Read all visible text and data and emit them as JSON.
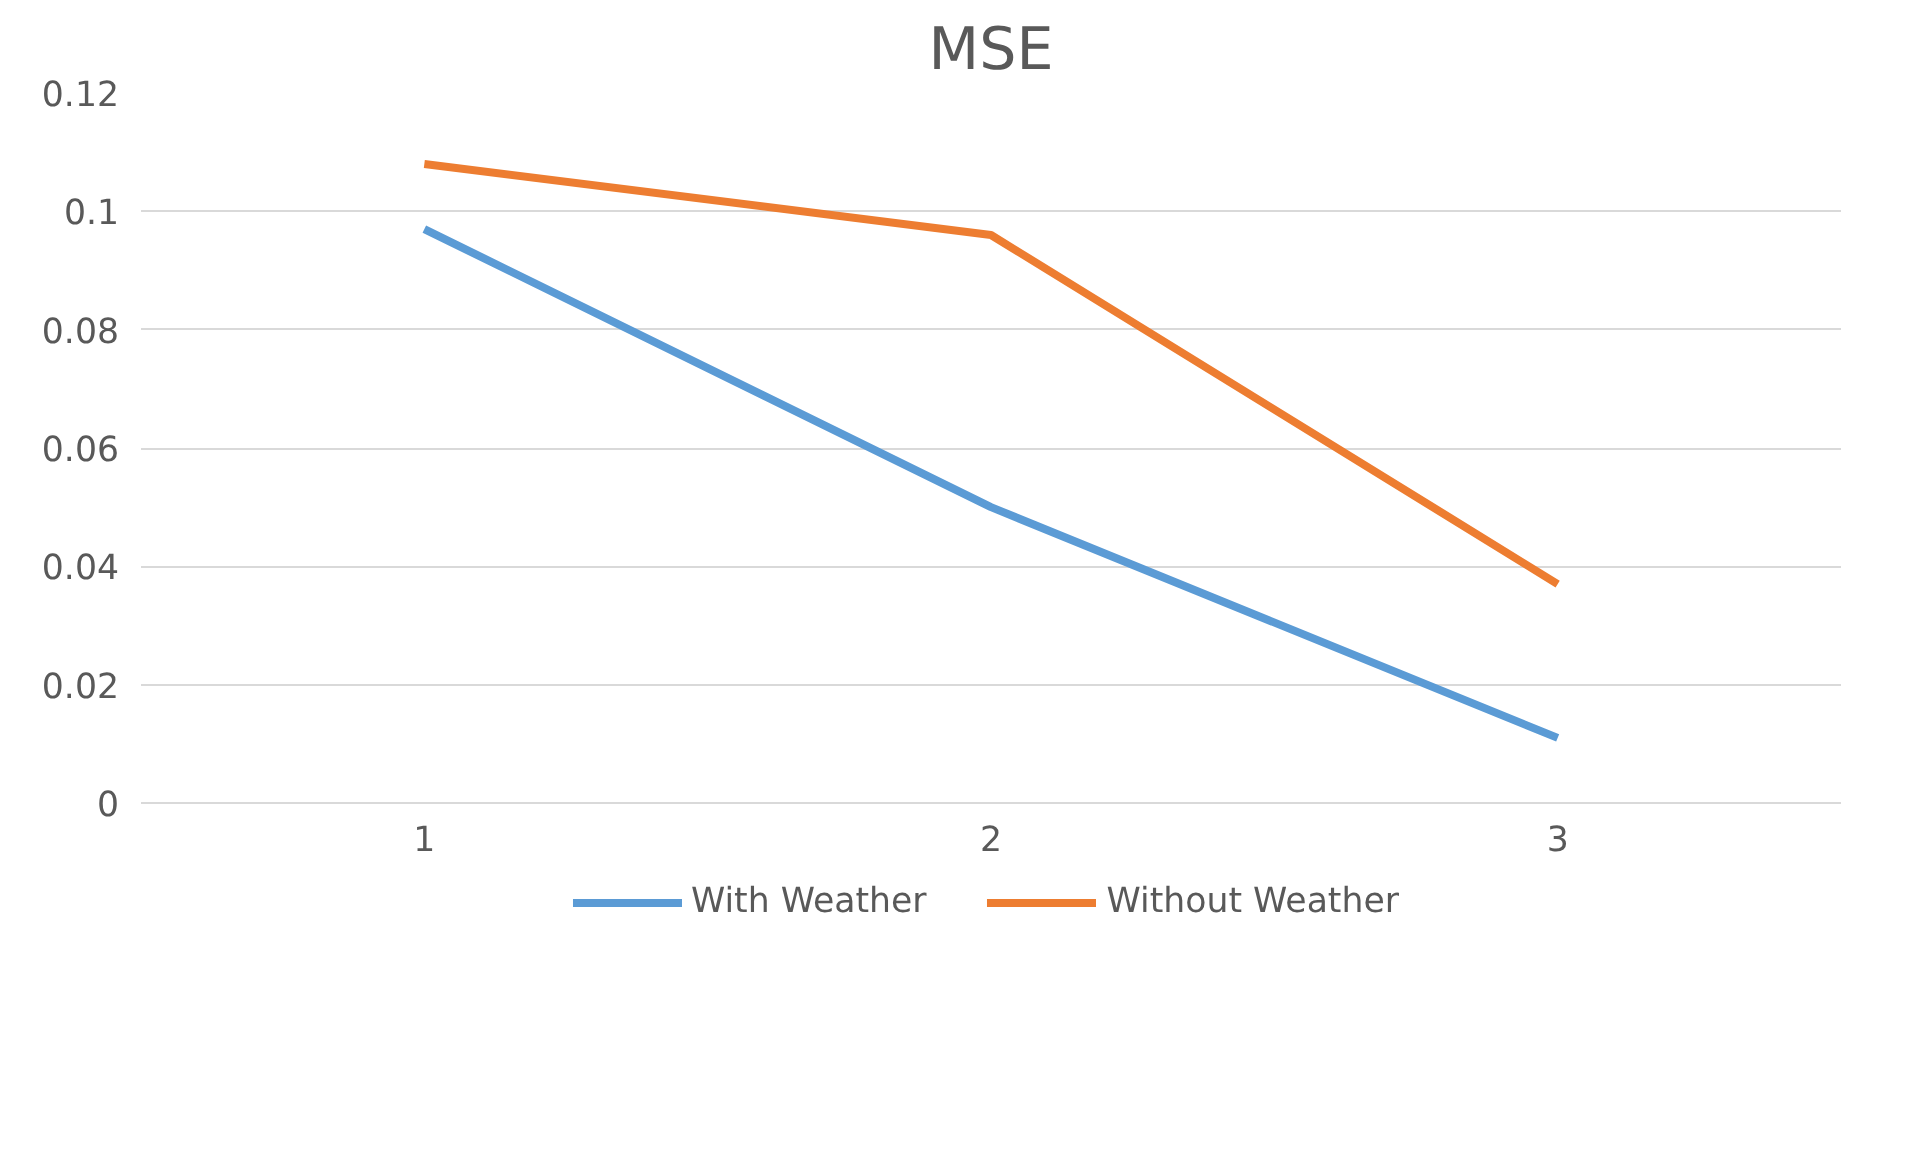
{
  "chart_data": {
    "type": "line",
    "title": "MSE",
    "categories": [
      "1",
      "2",
      "3"
    ],
    "series": [
      {
        "name": "With Weather",
        "color": "#5b9bd5",
        "values": [
          0.097,
          0.05,
          0.011
        ]
      },
      {
        "name": "Without Weather",
        "color": "#ed7d31",
        "values": [
          0.108,
          0.096,
          0.037
        ]
      }
    ],
    "ylim": [
      0,
      0.12
    ],
    "yticks": [
      0,
      0.02,
      0.04,
      0.06,
      0.08,
      0.1,
      0.12
    ],
    "grid": "y",
    "legend": "bottom",
    "marker": "none",
    "line_style": "solid"
  }
}
